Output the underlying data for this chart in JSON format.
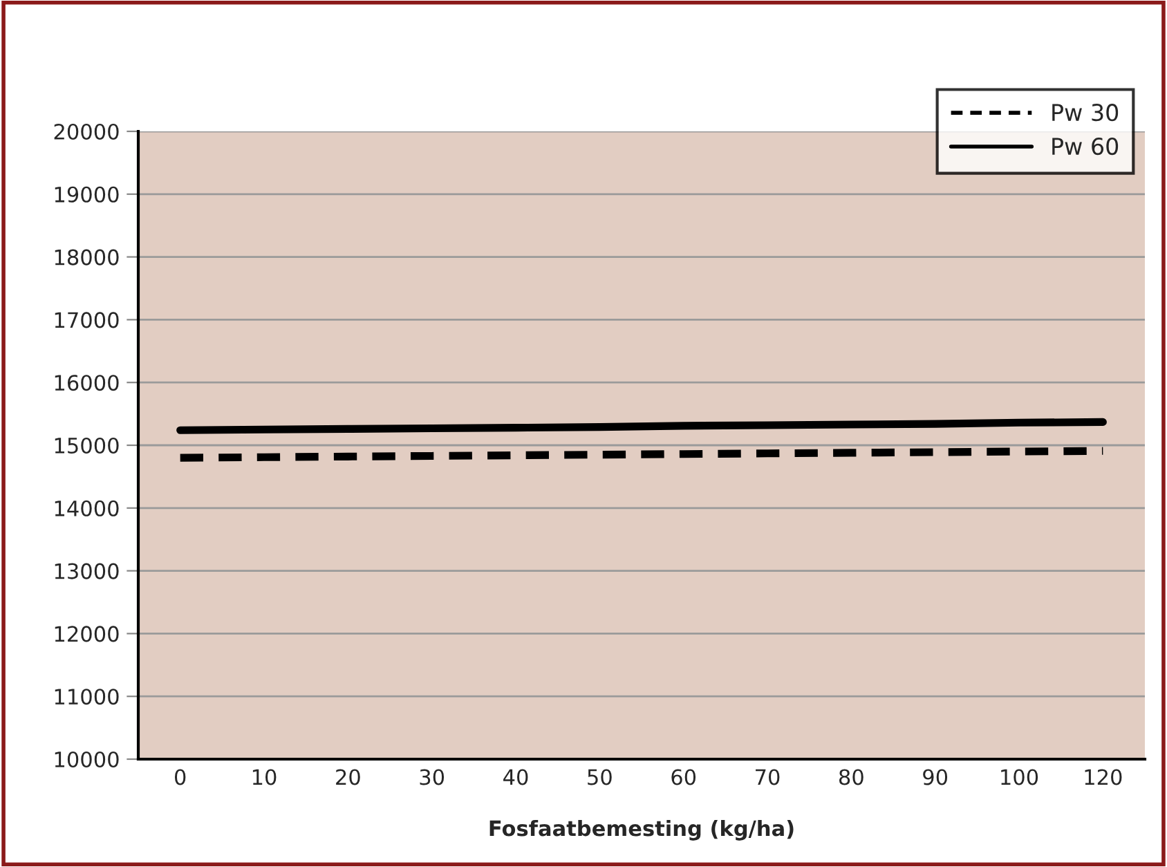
{
  "chart_data": {
    "type": "line",
    "xlabel": "Fosfaatbemesting (kg/ha)",
    "categories": [
      "0",
      "10",
      "20",
      "30",
      "40",
      "50",
      "60",
      "70",
      "80",
      "90",
      "100",
      "120"
    ],
    "series": [
      {
        "name": "Pw 30",
        "color": "#000000",
        "line_style": "dashed",
        "values": [
          14800,
          14810,
          14820,
          14830,
          14840,
          14850,
          14860,
          14870,
          14880,
          14890,
          14900,
          14910
        ]
      },
      {
        "name": "Pw 60",
        "color": "#000000",
        "line_style": "solid",
        "values": [
          15240,
          15250,
          15260,
          15270,
          15280,
          15290,
          15310,
          15320,
          15330,
          15340,
          15360,
          15370
        ]
      }
    ],
    "ylim": [
      10000,
      20000
    ],
    "yticks": [
      10000,
      11000,
      12000,
      13000,
      14000,
      15000,
      16000,
      17000,
      18000,
      19000,
      20000
    ],
    "grid": "y",
    "legend": "top right",
    "marker": "none"
  }
}
